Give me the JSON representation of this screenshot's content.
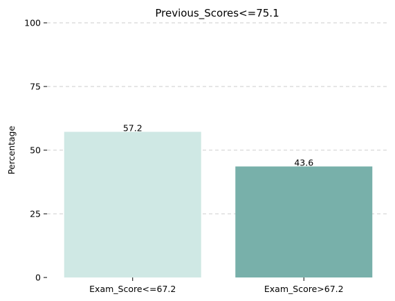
{
  "chart_data": {
    "type": "bar",
    "title": "Previous_Scores<=75.1",
    "xlabel": "",
    "ylabel": "Percentage",
    "categories": [
      "Exam_Score<=67.2",
      "Exam_Score>67.2"
    ],
    "values": [
      57.2,
      43.6
    ],
    "value_labels": [
      "57.2",
      "43.6"
    ],
    "colors": [
      "#cfe8e4",
      "#78b0aa"
    ],
    "ylim": [
      0,
      100
    ],
    "yticks": [
      0,
      25,
      50,
      75,
      100
    ],
    "ytick_labels": [
      "0",
      "25",
      "50",
      "75",
      "100"
    ],
    "grid": true,
    "grid_axis": "y"
  }
}
